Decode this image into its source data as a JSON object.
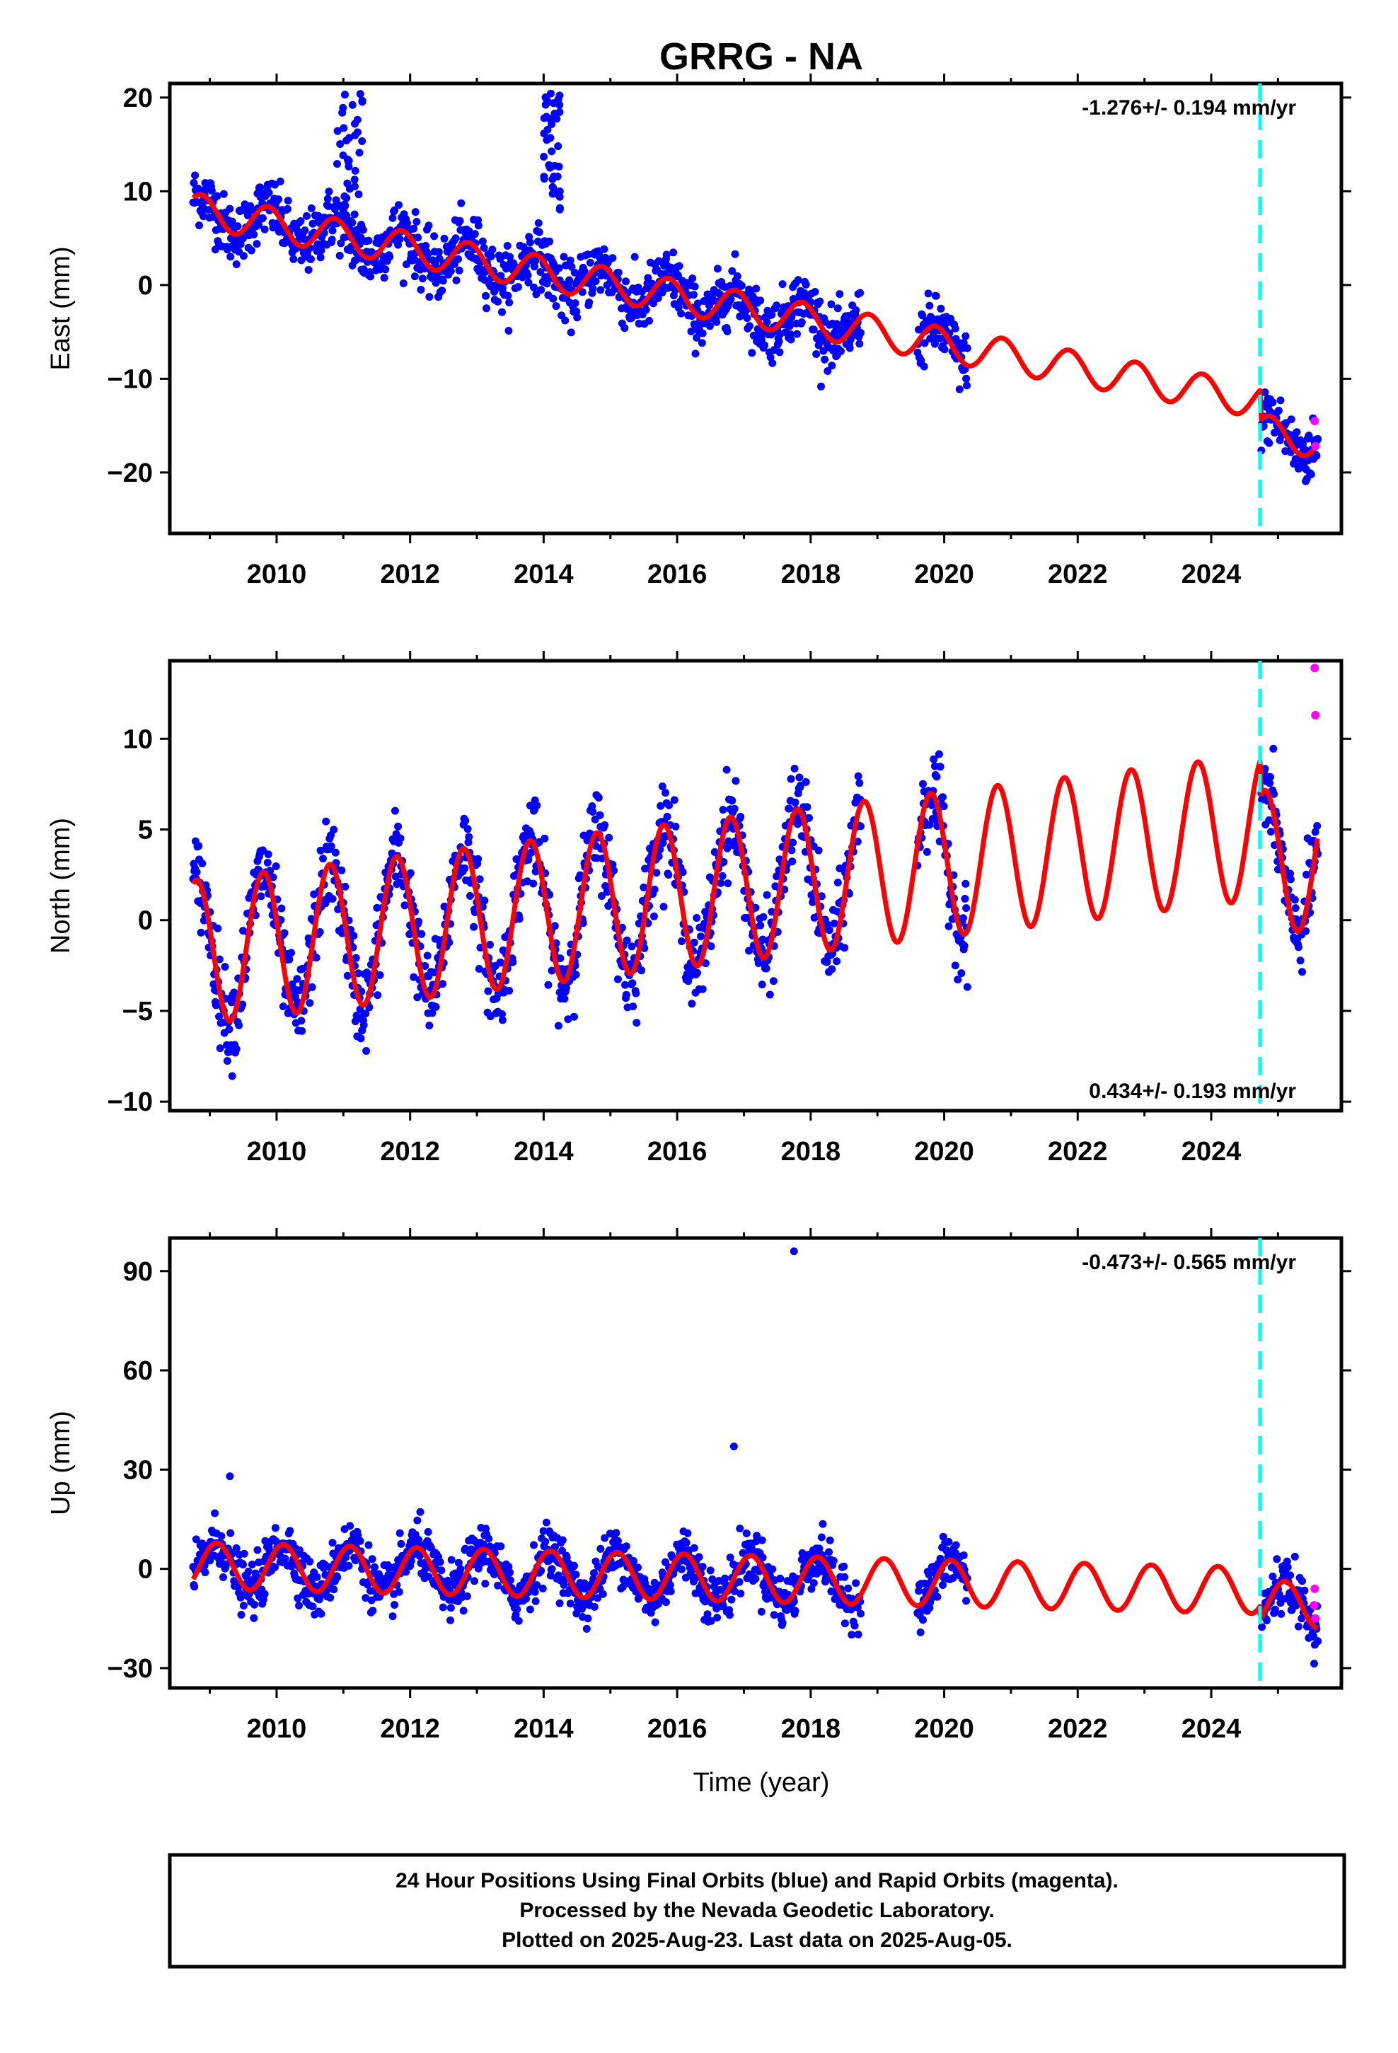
{
  "title": "GRRG - NA",
  "xlabel": "Time (year)",
  "footer": {
    "line1": "24 Hour Positions Using Final Orbits (blue) and Rapid Orbits (magenta).",
    "line2": "Processed by the Nevada Geodetic Laboratory.",
    "line3": "Plotted on 2025-Aug-23. Last data on 2025-Aug-05."
  },
  "colors": {
    "final_orbits": "#0000ff",
    "rapid_orbits": "#ff00ff",
    "model": "#ff0000",
    "equipment_change": "#00ffff"
  },
  "chart_data": [
    {
      "type": "scatter",
      "component": "east",
      "ylabel": "East (mm)",
      "rate_label": "-1.276+/- 0.194 mm/yr",
      "rate_label_position": "top-right",
      "xlim": [
        2008.4,
        2025.95
      ],
      "ylim": [
        -26.5,
        21.5
      ],
      "yticks": [
        20,
        10,
        0,
        -10,
        -20
      ],
      "xticks": [
        2010,
        2012,
        2014,
        2016,
        2018,
        2020,
        2022,
        2024
      ],
      "equipment_change_epoch": 2024.73,
      "data_spans": [
        [
          2008.75,
          2018.75
        ],
        [
          2019.6,
          2020.35
        ],
        [
          2024.75,
          2025.6
        ]
      ],
      "model": {
        "offset": 8.0,
        "ref_epoch": 2008.75,
        "trend_mm_per_yr": -1.276,
        "annual_amplitude": 1.8,
        "annual_phase_year": 0.62,
        "step_at_change": -3.2
      },
      "scatter_noise": 1.6,
      "outlier_clusters": [
        {
          "x_range": [
            2010.9,
            2011.3
          ],
          "y_range": [
            5,
            21
          ]
        },
        {
          "x_range": [
            2014.0,
            2014.25
          ],
          "y_range": [
            8,
            21
          ]
        }
      ],
      "rapid_points": [
        {
          "x": 2025.55,
          "y": -14.5
        },
        {
          "x": 2025.56,
          "y": -17.2
        }
      ]
    },
    {
      "type": "scatter",
      "component": "north",
      "ylabel": "North (mm)",
      "rate_label": "0.434+/- 0.193 mm/yr",
      "rate_label_position": "bottom-right",
      "xlim": [
        2008.4,
        2025.95
      ],
      "ylim": [
        -10.5,
        14.3
      ],
      "yticks": [
        10,
        5,
        0,
        -5,
        -10
      ],
      "xticks": [
        2010,
        2012,
        2014,
        2016,
        2018,
        2020,
        2022,
        2024
      ],
      "equipment_change_epoch": 2024.73,
      "data_spans": [
        [
          2008.75,
          2018.75
        ],
        [
          2019.6,
          2020.35
        ],
        [
          2024.75,
          2025.6
        ]
      ],
      "model": {
        "offset": -1.8,
        "ref_epoch": 2008.75,
        "trend_mm_per_yr": 0.434,
        "annual_amplitude": 4.0,
        "annual_phase_year": 0.55,
        "step_at_change": -2.0
      },
      "scatter_noise": 1.2,
      "outlier_clusters": [],
      "rapid_points": [
        {
          "x": 2025.55,
          "y": 13.9
        },
        {
          "x": 2025.56,
          "y": 11.3
        }
      ]
    },
    {
      "type": "scatter",
      "component": "up",
      "ylabel": "Up (mm)",
      "rate_label": "-0.473+/- 0.565 mm/yr",
      "rate_label_position": "top-right",
      "xlim": [
        2008.4,
        2025.95
      ],
      "ylim": [
        -36,
        100
      ],
      "yticks": [
        90,
        60,
        30,
        0,
        -30
      ],
      "xticks": [
        2010,
        2012,
        2014,
        2016,
        2018,
        2020,
        2022,
        2024
      ],
      "equipment_change_epoch": 2024.73,
      "data_spans": [
        [
          2008.75,
          2018.75
        ],
        [
          2019.6,
          2020.35
        ],
        [
          2024.75,
          2025.6
        ]
      ],
      "model": {
        "offset": 1.0,
        "ref_epoch": 2008.75,
        "trend_mm_per_yr": -0.473,
        "annual_amplitude": 7.0,
        "annual_phase_year": 0.85,
        "step_at_change": -4.0
      },
      "scatter_noise": 4.0,
      "outlier_clusters": [],
      "rapid_points": [
        {
          "x": 2025.55,
          "y": -6.0
        },
        {
          "x": 2025.56,
          "y": -15.0
        },
        {
          "x": 2025.54,
          "y": -11.0
        }
      ],
      "isolated_points": [
        {
          "x": 2017.75,
          "y": 96
        },
        {
          "x": 2016.85,
          "y": 37
        },
        {
          "x": 2009.3,
          "y": 28
        }
      ]
    }
  ]
}
